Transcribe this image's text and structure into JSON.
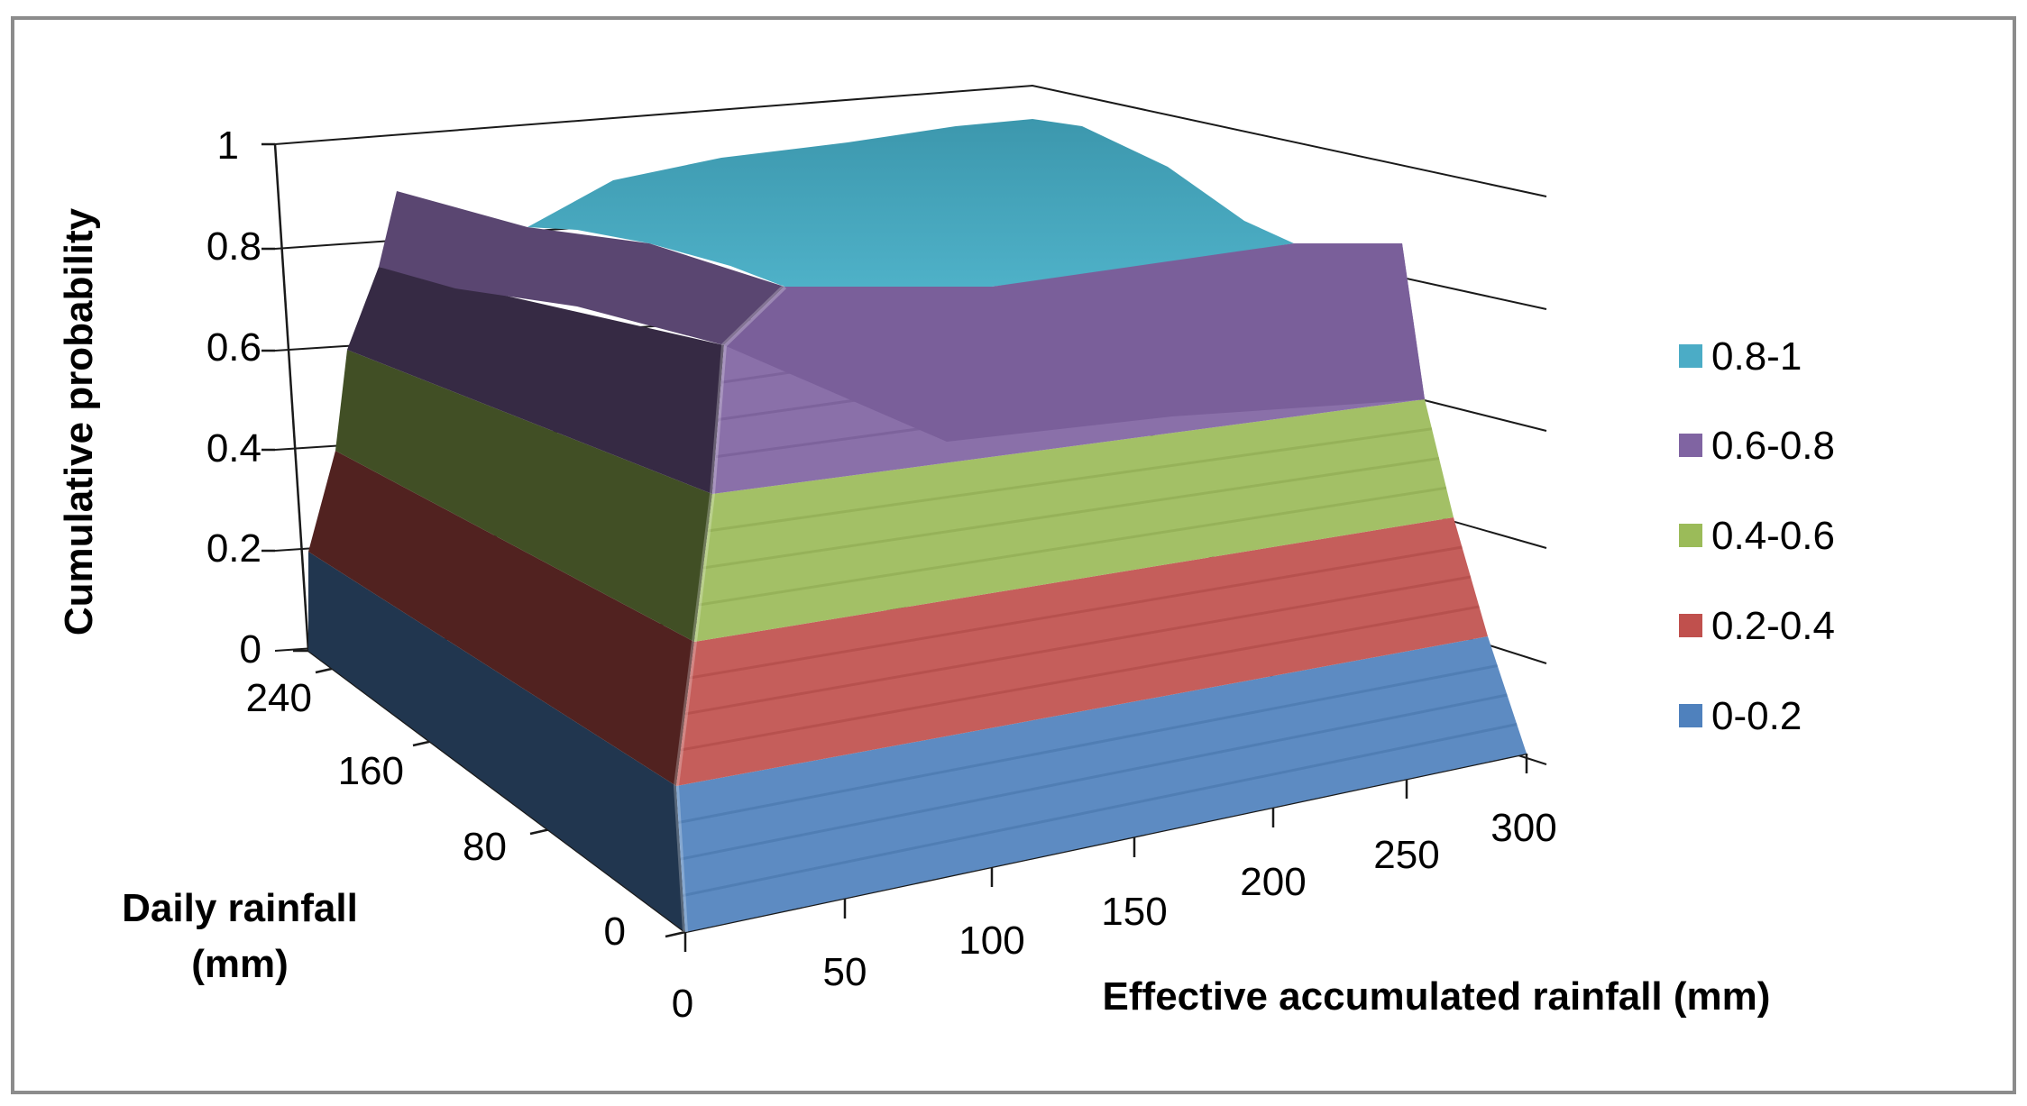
{
  "chart_data": {
    "type": "surface",
    "title": "",
    "zlabel": "Cumulative probability",
    "ylabel_line1": "Daily rainfall",
    "ylabel_line2": "(mm)",
    "xlabel": "Effective accumulated rainfall (mm)",
    "z_ticks": [
      "0",
      "0.2",
      "0.4",
      "0.6",
      "0.8",
      "1"
    ],
    "y_ticks": [
      "0",
      "80",
      "160",
      "240"
    ],
    "x_ticks": [
      "0",
      "50",
      "100",
      "150",
      "200",
      "250",
      "300"
    ],
    "xlim": [
      0,
      300
    ],
    "ylim": [
      0,
      240
    ],
    "zlim": [
      0,
      1
    ],
    "legend_position": "right",
    "bands": [
      {
        "name": "0.8-1",
        "color": "#4BACC6",
        "range": [
          0.8,
          1.0
        ]
      },
      {
        "name": "0.6-0.8",
        "color": "#8064A2",
        "range": [
          0.6,
          0.8
        ]
      },
      {
        "name": "0.4-0.6",
        "color": "#9BBB59",
        "range": [
          0.4,
          0.6
        ]
      },
      {
        "name": "0.2-0.4",
        "color": "#C0504D",
        "range": [
          0.2,
          0.4
        ]
      },
      {
        "name": "0-0.2",
        "color": "#4F81BD",
        "range": [
          0.0,
          0.2
        ]
      }
    ]
  }
}
